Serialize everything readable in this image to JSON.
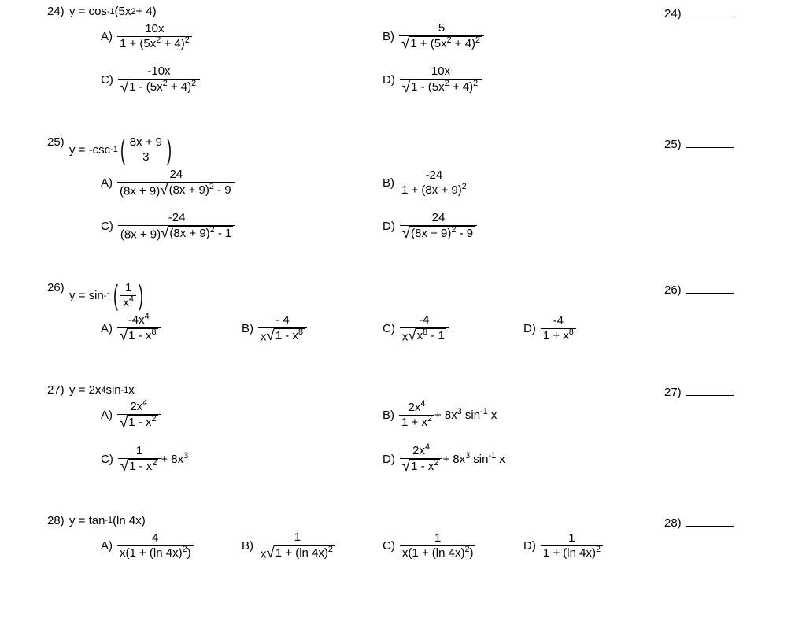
{
  "questions": [
    {
      "num": "24)",
      "prompt_prefix": "y = cos",
      "prompt_exp": "-1",
      "prompt_arg_pre": " (5x",
      "prompt_arg_exp": "2",
      "prompt_arg_post": " + 4)",
      "ans_label": "24)",
      "layout": "2col",
      "choices": {
        "A": {
          "num": "10x",
          "den_pre": "1 + (5x",
          "den_exp1": "2",
          "den_mid": " + 4)",
          "den_exp2": "2"
        },
        "B": {
          "num": "5",
          "rad_pre": "1 + (5x",
          "rad_exp1": "2",
          "rad_mid": " + 4)",
          "rad_exp2": "2"
        },
        "C": {
          "num": "-10x",
          "rad_pre": "1 - (5x",
          "rad_exp1": "2",
          "rad_mid": " + 4)",
          "rad_exp2": "2"
        },
        "D": {
          "num": "10x",
          "rad_pre": "1 - (5x",
          "rad_exp1": "2",
          "rad_mid": " + 4)",
          "rad_exp2": "2"
        }
      }
    },
    {
      "num": "25)",
      "prompt_prefix": "y = -csc",
      "prompt_exp": "-1",
      "inner_num": "8x + 9",
      "inner_den": "3",
      "ans_label": "25)",
      "layout": "2col",
      "choices": {
        "A": {
          "num": "24",
          "den_pre": "(8x + 9)",
          "rad_pre": "(8x + 9)",
          "rad_exp": "2",
          "rad_post": " - 9"
        },
        "B": {
          "num": "-24",
          "den_pre": "1 + (8x + 9)",
          "den_exp": "2"
        },
        "C": {
          "num": "-24",
          "den_pre": "(8x + 9)",
          "rad_pre": "(8x + 9)",
          "rad_exp": "2",
          "rad_post": " - 1"
        },
        "D": {
          "num": "24",
          "rad_pre": "(8x + 9)",
          "rad_exp": "2",
          "rad_post": " - 9"
        }
      }
    },
    {
      "num": "26)",
      "prompt_prefix": "y = sin",
      "prompt_exp": "-1",
      "inner_num": "1",
      "inner_den_pre": "x",
      "inner_den_exp": "4",
      "ans_label": "26)",
      "layout": "4col",
      "choices": {
        "A": {
          "num_pre": "-4x",
          "num_exp": "4",
          "rad_pre": "1 - x",
          "rad_exp": "8"
        },
        "B": {
          "num": "- 4",
          "den_pre": "x",
          "rad_pre": "1 - x",
          "rad_exp": "8"
        },
        "C": {
          "num": "-4",
          "den_pre": "x",
          "rad_pre": "x",
          "rad_exp": "8",
          "rad_post": " - 1"
        },
        "D": {
          "num": "-4",
          "den_pre": "1 + x",
          "den_exp": "8"
        }
      }
    },
    {
      "num": "27)",
      "prompt_pre": "y = 2x",
      "prompt_exp1": "4",
      "prompt_mid": " sin",
      "prompt_exp2": "-1",
      "prompt_post": " x",
      "ans_label": "27)",
      "layout": "2col",
      "choices": {
        "A": {
          "num_pre": "2x",
          "num_exp": "4",
          "rad_pre": "1 - x",
          "rad_exp": "2"
        },
        "B": {
          "num_pre": "2x",
          "num_exp": "4",
          "den_pre": "1 + x",
          "den_exp": "2",
          "tail_pre": " + 8x",
          "tail_exp1": "3",
          "tail_mid": " sin",
          "tail_exp2": "-1",
          "tail_post": " x"
        },
        "C": {
          "num": "1",
          "rad_pre": "1 - x",
          "rad_exp": "2",
          "tail_pre": " + 8x",
          "tail_exp": "3"
        },
        "D": {
          "num_pre": "2x",
          "num_exp": "4",
          "rad_pre": "1 - x",
          "rad_exp": "2",
          "tail_pre": " + 8x",
          "tail_exp1": "3",
          "tail_mid": " sin",
          "tail_exp2": "-1",
          "tail_post": " x"
        }
      }
    },
    {
      "num": "28)",
      "prompt_prefix": "y = tan",
      "prompt_exp": "-1",
      "prompt_arg": " (ln 4x)",
      "ans_label": "28)",
      "layout": "4col",
      "choices": {
        "A": {
          "num": "4",
          "den_pre": "x(1 + (ln 4x)",
          "den_exp": "2",
          "den_post": ")"
        },
        "B": {
          "num": "1",
          "den_pre": "x",
          "rad_pre": "1 + (ln 4x)",
          "rad_exp": "2"
        },
        "C": {
          "num": "1",
          "den_pre": "x(1 + (ln 4x)",
          "den_exp": "2",
          "den_post": ")"
        },
        "D": {
          "num": "1",
          "den_pre": "1 + (ln 4x)",
          "den_exp": "2"
        }
      }
    }
  ],
  "labels": {
    "A": "A)",
    "B": "B)",
    "C": "C)",
    "D": "D)"
  }
}
